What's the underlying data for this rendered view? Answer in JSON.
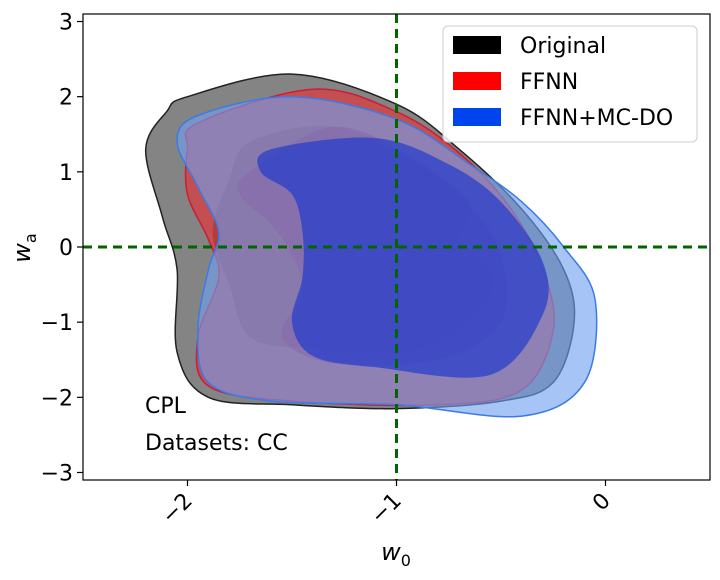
{
  "chart_data": {
    "type": "contour",
    "xlabel_base": "w",
    "xlabel_sub": "0",
    "ylabel_base": "w",
    "ylabel_sub": "a",
    "xlim": [
      -2.5,
      0.5
    ],
    "ylim": [
      -3.1,
      3.1
    ],
    "x_ticks": [
      {
        "value": -2,
        "label": "−2"
      },
      {
        "value": -1,
        "label": "−1"
      },
      {
        "value": 0,
        "label": "0"
      }
    ],
    "y_ticks": [
      {
        "value": 3,
        "label": "3"
      },
      {
        "value": 2,
        "label": "2"
      },
      {
        "value": 1,
        "label": "1"
      },
      {
        "value": 0,
        "label": "0"
      },
      {
        "value": -1,
        "label": "−1"
      },
      {
        "value": -2,
        "label": "−2"
      },
      {
        "value": -3,
        "label": "−3"
      }
    ],
    "reference_lines": {
      "x": -1,
      "y": 0,
      "color": "#006400"
    },
    "annotations": [
      "CPL",
      "Datasets: CC"
    ],
    "legend_position": "top-right",
    "series": [
      {
        "name": "Original",
        "color": "#000000",
        "outer": [
          [
            -2.0,
            2.0
          ],
          [
            -1.5,
            2.3
          ],
          [
            -1.0,
            1.9
          ],
          [
            -0.7,
            1.3
          ],
          [
            -0.4,
            0.5
          ],
          [
            -0.2,
            -0.3
          ],
          [
            -0.15,
            -1.0
          ],
          [
            -0.25,
            -1.8
          ],
          [
            -0.5,
            -2.05
          ],
          [
            -1.0,
            -2.15
          ],
          [
            -1.5,
            -2.1
          ],
          [
            -1.9,
            -2.0
          ],
          [
            -2.05,
            -1.4
          ],
          [
            -2.05,
            -0.3
          ],
          [
            -2.12,
            0.4
          ],
          [
            -2.2,
            1.3
          ],
          [
            -2.1,
            1.8
          ]
        ],
        "inner": [
          [
            -1.7,
            1.4
          ],
          [
            -1.3,
            1.6
          ],
          [
            -0.9,
            1.1
          ],
          [
            -0.65,
            0.6
          ],
          [
            -0.7,
            0.1
          ],
          [
            -0.55,
            -0.3
          ],
          [
            -0.6,
            -0.85
          ],
          [
            -0.9,
            -1.35
          ],
          [
            -1.4,
            -1.35
          ],
          [
            -1.7,
            -1.2
          ],
          [
            -1.8,
            -0.5
          ],
          [
            -1.88,
            0.2
          ],
          [
            -1.8,
            0.9
          ]
        ]
      },
      {
        "name": "FFNN",
        "color": "#ff0000",
        "outer": [
          [
            -1.95,
            1.65
          ],
          [
            -1.4,
            2.1
          ],
          [
            -1.0,
            1.8
          ],
          [
            -0.7,
            1.25
          ],
          [
            -0.45,
            0.5
          ],
          [
            -0.3,
            -0.3
          ],
          [
            -0.25,
            -1.1
          ],
          [
            -0.4,
            -1.9
          ],
          [
            -0.8,
            -2.1
          ],
          [
            -1.5,
            -2.05
          ],
          [
            -1.9,
            -1.85
          ],
          [
            -1.95,
            -1.2
          ],
          [
            -1.85,
            -0.4
          ],
          [
            -1.9,
            0.1
          ],
          [
            -2.0,
            0.7
          ],
          [
            -2.0,
            1.3
          ]
        ],
        "inner": [
          [
            -1.7,
            1.0
          ],
          [
            -1.3,
            1.6
          ],
          [
            -0.9,
            1.15
          ],
          [
            -0.65,
            0.55
          ],
          [
            -0.5,
            -0.1
          ],
          [
            -0.5,
            -1.0
          ],
          [
            -0.8,
            -1.5
          ],
          [
            -1.3,
            -1.55
          ],
          [
            -1.55,
            -1.2
          ],
          [
            -1.45,
            -0.6
          ],
          [
            -1.5,
            -0.1
          ],
          [
            -1.6,
            0.3
          ],
          [
            -1.75,
            0.7
          ]
        ]
      },
      {
        "name": "FFNN+MC-DO",
        "color": "#0044ee",
        "outer": [
          [
            -1.95,
            1.75
          ],
          [
            -1.5,
            2.0
          ],
          [
            -1.0,
            1.7
          ],
          [
            -0.65,
            1.1
          ],
          [
            -0.4,
            0.6
          ],
          [
            -0.2,
            0.0
          ],
          [
            -0.05,
            -0.7
          ],
          [
            -0.1,
            -1.8
          ],
          [
            -0.4,
            -2.25
          ],
          [
            -1.0,
            -2.1
          ],
          [
            -1.6,
            -2.05
          ],
          [
            -1.9,
            -1.8
          ],
          [
            -1.95,
            -1.1
          ],
          [
            -1.9,
            -0.3
          ],
          [
            -1.85,
            0.2
          ],
          [
            -1.95,
            0.8
          ],
          [
            -2.05,
            1.4
          ]
        ],
        "inner": [
          [
            -1.6,
            1.3
          ],
          [
            -1.1,
            1.45
          ],
          [
            -0.75,
            1.1
          ],
          [
            -0.5,
            0.6
          ],
          [
            -0.3,
            -0.2
          ],
          [
            -0.3,
            -0.9
          ],
          [
            -0.55,
            -1.7
          ],
          [
            -1.1,
            -1.6
          ],
          [
            -1.4,
            -1.45
          ],
          [
            -1.5,
            -1.0
          ],
          [
            -1.45,
            -0.4
          ],
          [
            -1.45,
            0.2
          ],
          [
            -1.5,
            0.7
          ],
          [
            -1.65,
            1.0
          ]
        ]
      }
    ]
  }
}
